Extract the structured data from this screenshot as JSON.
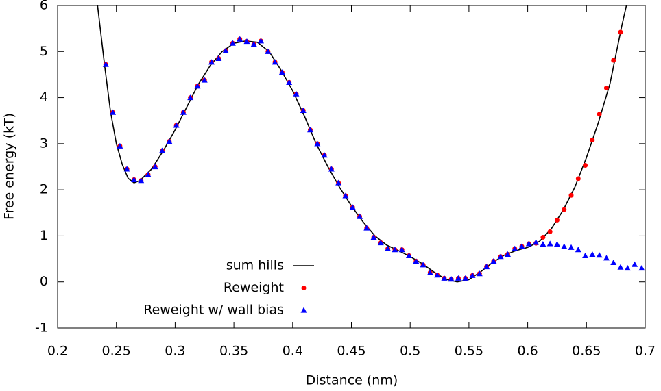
{
  "chart_data": {
    "type": "scatter",
    "xlabel": "Distance (nm)",
    "ylabel": "Free energy (kT)",
    "xlim": [
      0.2,
      0.7
    ],
    "ylim": [
      -1,
      6
    ],
    "xticks": [
      0.2,
      0.25,
      0.3,
      0.35,
      0.4,
      0.45,
      0.5,
      0.55,
      0.6,
      0.65,
      0.7
    ],
    "yticks": [
      -1,
      0,
      1,
      2,
      3,
      4,
      5,
      6
    ],
    "legend_loc": "lower center",
    "x": [
      0.241,
      0.247,
      0.253,
      0.259,
      0.265,
      0.271,
      0.277,
      0.283,
      0.289,
      0.295,
      0.301,
      0.307,
      0.313,
      0.319,
      0.325,
      0.331,
      0.337,
      0.343,
      0.349,
      0.355,
      0.361,
      0.367,
      0.373,
      0.379,
      0.385,
      0.391,
      0.397,
      0.403,
      0.409,
      0.415,
      0.421,
      0.427,
      0.433,
      0.439,
      0.445,
      0.451,
      0.457,
      0.463,
      0.469,
      0.475,
      0.481,
      0.487,
      0.493,
      0.499,
      0.505,
      0.511,
      0.517,
      0.523,
      0.529,
      0.535,
      0.541,
      0.547,
      0.553,
      0.559,
      0.565,
      0.571,
      0.577,
      0.583,
      0.589,
      0.595,
      0.601,
      0.607,
      0.613,
      0.619,
      0.625,
      0.631,
      0.637,
      0.643,
      0.649,
      0.655,
      0.661,
      0.667,
      0.673,
      0.679,
      0.685,
      0.691,
      0.697
    ],
    "series": [
      {
        "name": "sum hills",
        "color": "#000000",
        "kind": "line",
        "x": [
          0.234,
          0.24,
          0.245,
          0.25,
          0.255,
          0.26,
          0.265,
          0.27,
          0.28,
          0.29,
          0.3,
          0.31,
          0.32,
          0.33,
          0.34,
          0.35,
          0.36,
          0.37,
          0.38,
          0.39,
          0.4,
          0.41,
          0.42,
          0.43,
          0.44,
          0.45,
          0.46,
          0.47,
          0.48,
          0.49,
          0.5,
          0.51,
          0.52,
          0.53,
          0.54,
          0.55,
          0.56,
          0.57,
          0.58,
          0.59,
          0.6,
          0.61,
          0.62,
          0.63,
          0.64,
          0.65,
          0.66,
          0.67,
          0.68,
          0.684
        ],
        "values": [
          6.0,
          4.7,
          3.7,
          3.0,
          2.55,
          2.25,
          2.15,
          2.2,
          2.45,
          2.85,
          3.3,
          3.8,
          4.3,
          4.7,
          5.0,
          5.18,
          5.23,
          5.2,
          5.0,
          4.6,
          4.15,
          3.6,
          3.0,
          2.5,
          2.05,
          1.65,
          1.3,
          1.0,
          0.8,
          0.68,
          0.55,
          0.4,
          0.22,
          0.06,
          0.0,
          0.05,
          0.22,
          0.42,
          0.58,
          0.68,
          0.75,
          0.88,
          1.15,
          1.55,
          2.05,
          2.7,
          3.45,
          4.3,
          5.55,
          6.0
        ]
      },
      {
        "name": "Reweight",
        "color": "#ff0000",
        "kind": "circle",
        "values": [
          4.72,
          3.68,
          2.95,
          2.45,
          2.22,
          2.2,
          2.33,
          2.5,
          2.85,
          3.05,
          3.4,
          3.68,
          4.0,
          4.25,
          4.38,
          4.77,
          4.85,
          5.02,
          5.18,
          5.27,
          5.22,
          5.16,
          5.23,
          5.0,
          4.77,
          4.55,
          4.33,
          4.08,
          3.72,
          3.3,
          3.0,
          2.75,
          2.45,
          2.15,
          1.87,
          1.62,
          1.42,
          1.17,
          0.97,
          0.85,
          0.72,
          0.7,
          0.7,
          0.57,
          0.45,
          0.37,
          0.2,
          0.15,
          0.08,
          0.06,
          0.08,
          0.08,
          0.14,
          0.18,
          0.33,
          0.45,
          0.55,
          0.6,
          0.72,
          0.77,
          0.83,
          0.84,
          0.97,
          1.09,
          1.34,
          1.57,
          1.88,
          2.24,
          2.53,
          3.08,
          3.64,
          4.21,
          4.81,
          5.42,
          null,
          null,
          null
        ]
      },
      {
        "name": "Reweight w/ wall bias",
        "color": "#0000ff",
        "kind": "triangle",
        "values": [
          4.72,
          3.68,
          2.95,
          2.45,
          2.22,
          2.2,
          2.33,
          2.5,
          2.85,
          3.05,
          3.4,
          3.68,
          4.0,
          4.25,
          4.38,
          4.77,
          4.85,
          5.02,
          5.18,
          5.27,
          5.22,
          5.16,
          5.23,
          5.0,
          4.77,
          4.55,
          4.33,
          4.08,
          3.72,
          3.3,
          3.0,
          2.75,
          2.45,
          2.15,
          1.87,
          1.62,
          1.42,
          1.17,
          0.97,
          0.85,
          0.72,
          0.7,
          0.7,
          0.57,
          0.45,
          0.37,
          0.2,
          0.15,
          0.08,
          0.06,
          0.08,
          0.08,
          0.14,
          0.18,
          0.33,
          0.45,
          0.55,
          0.6,
          0.72,
          0.77,
          0.83,
          0.86,
          0.82,
          0.83,
          0.82,
          0.77,
          0.75,
          0.7,
          0.57,
          0.6,
          0.58,
          0.52,
          0.42,
          0.32,
          0.3,
          0.38,
          0.3
        ]
      }
    ]
  }
}
